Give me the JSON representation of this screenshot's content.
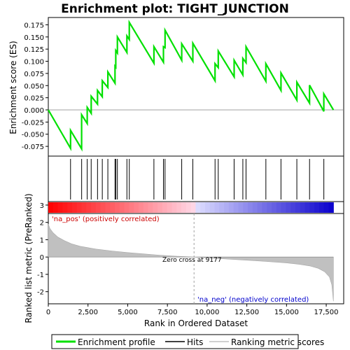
{
  "chart_data": {
    "type": "line",
    "title": "Enrichment plot: TIGHT_JUNCTION",
    "es_panel": {
      "ylabel": "Enrichment score (ES)",
      "ylim": [
        -0.095,
        0.19
      ],
      "yticks": [
        -0.075,
        -0.05,
        -0.025,
        0.0,
        0.025,
        0.05,
        0.075,
        0.1,
        0.125,
        0.15,
        0.175
      ],
      "ytick_labels": [
        "-0.075",
        "-0.050",
        "-0.025",
        "0.000",
        "0.025",
        "0.050",
        "0.075",
        "0.100",
        "0.125",
        "0.150",
        "0.175"
      ],
      "series_color": "#00e000",
      "hits": [
        1400,
        2100,
        2450,
        2700,
        3100,
        3400,
        3750,
        4200,
        4250,
        4350,
        4950,
        5100,
        6650,
        7250,
        7350,
        8400,
        9100,
        10500,
        10700,
        11700,
        12250,
        12450,
        13700,
        14650,
        15650,
        16450,
        17350
      ],
      "profile": {
        "x": [
          0,
          1400,
          1400,
          2100,
          2100,
          2450,
          2450,
          2700,
          2700,
          3100,
          3100,
          3400,
          3400,
          3750,
          3750,
          4200,
          4200,
          4250,
          4250,
          4350,
          4350,
          4950,
          4950,
          5100,
          5100,
          6650,
          6650,
          7250,
          7250,
          7350,
          7350,
          8400,
          8400,
          9100,
          9100,
          10500,
          10500,
          10700,
          10700,
          11700,
          11700,
          12250,
          12250,
          12450,
          12450,
          13700,
          13700,
          14650,
          14650,
          15650,
          15650,
          16450,
          16450,
          17350,
          17350,
          17950
        ],
        "y": [
          0.0,
          -0.079,
          -0.042,
          -0.08,
          -0.01,
          -0.028,
          0.005,
          -0.007,
          0.028,
          0.012,
          0.04,
          0.027,
          0.06,
          0.046,
          0.078,
          0.055,
          0.09,
          0.088,
          0.122,
          0.117,
          0.15,
          0.118,
          0.152,
          0.145,
          0.18,
          0.096,
          0.13,
          0.098,
          0.13,
          0.128,
          0.164,
          0.102,
          0.136,
          0.1,
          0.137,
          0.06,
          0.095,
          0.087,
          0.121,
          0.068,
          0.102,
          0.072,
          0.106,
          0.097,
          0.13,
          0.059,
          0.095,
          0.04,
          0.076,
          0.02,
          0.057,
          0.014,
          0.051,
          -0.003,
          0.033,
          0.0
        ]
      }
    },
    "metric_panel": {
      "ylabel": "Ranked list metric (PreRanked)",
      "ylim": [
        -2.7,
        3.2
      ],
      "yticks": [
        -2,
        -1,
        0,
        1,
        2,
        3
      ],
      "ytick_labels": [
        "-2",
        "-1",
        "0",
        "1",
        "2",
        "3"
      ],
      "fill_color": "#c0c0c0",
      "zero_cross": 9177,
      "zero_cross_label": "Zero cross at 9177",
      "pos_label": "'na_pos' (positively correlated)",
      "neg_label": "'na_neg' (negatively correlated)",
      "pos_label_color": "#cc0000",
      "neg_label_color": "#0000cc",
      "curve": {
        "x": [
          0,
          100,
          300,
          600,
          1000,
          1500,
          2000,
          3000,
          4000,
          5000,
          6000,
          7000,
          8000,
          9177,
          10000,
          11000,
          12000,
          13000,
          14000,
          15000,
          15800,
          16500,
          17000,
          17400,
          17700,
          17850,
          17950
        ],
        "y": [
          1.9,
          1.65,
          1.4,
          1.15,
          0.95,
          0.75,
          0.62,
          0.46,
          0.35,
          0.26,
          0.18,
          0.11,
          0.05,
          0.0,
          -0.05,
          -0.1,
          -0.16,
          -0.21,
          -0.27,
          -0.34,
          -0.42,
          -0.52,
          -0.65,
          -0.85,
          -1.15,
          -1.6,
          -2.55
        ]
      }
    },
    "xaxis": {
      "label": "Rank in Ordered Dataset",
      "xlim": [
        0,
        18600
      ],
      "ticks": [
        0,
        2500,
        5000,
        7500,
        10000,
        12500,
        15000,
        17500
      ],
      "tick_labels": [
        "0",
        "2,500",
        "5,000",
        "7,500",
        "10,000",
        "12,500",
        "15,000",
        "17,500"
      ]
    },
    "legend": {
      "placement": "bottom",
      "items": [
        {
          "label": "Enrichment profile",
          "color": "#00e000"
        },
        {
          "label": "Hits",
          "color": "#000000"
        },
        {
          "label": "Ranking metric scores",
          "color": "#c0c0c0"
        }
      ]
    }
  }
}
